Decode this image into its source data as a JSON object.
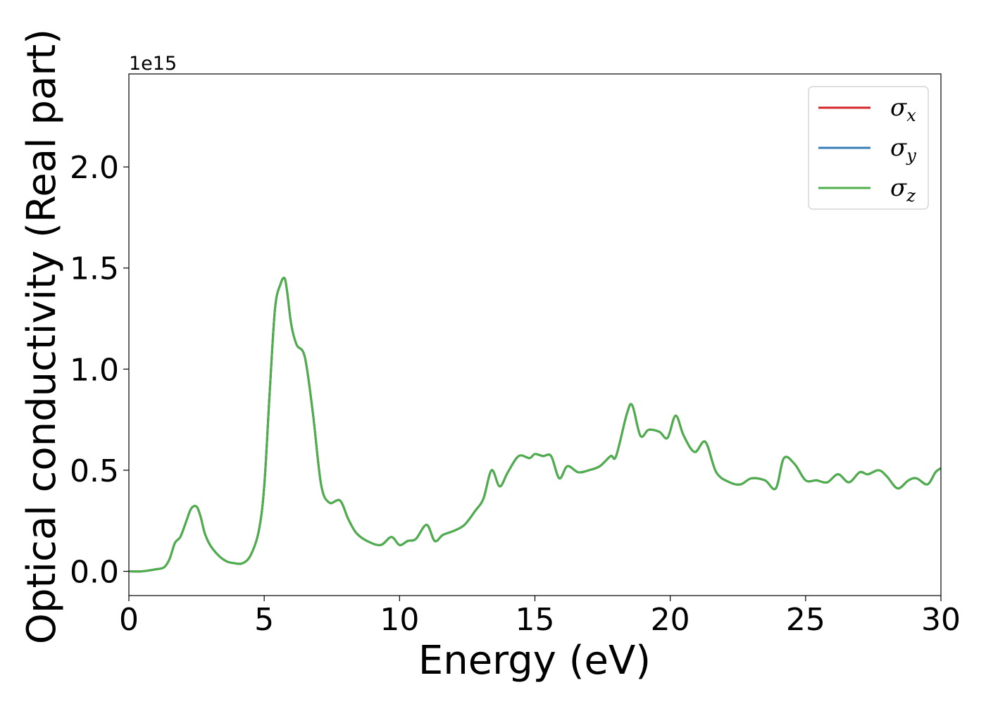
{
  "chart_data": {
    "type": "line",
    "title": "",
    "xlabel": "Energy (eV)",
    "ylabel": "Optical conductivity (Real part)",
    "y_offset_label": "1e15",
    "xlim": [
      0,
      30
    ],
    "ylim": [
      -0.12,
      2.46
    ],
    "x_ticks": [
      0,
      5,
      10,
      15,
      20,
      25,
      30
    ],
    "x_tick_labels": [
      "0",
      "5",
      "10",
      "15",
      "20",
      "25",
      "30"
    ],
    "y_ticks": [
      0.0,
      0.5,
      1.0,
      1.5,
      2.0
    ],
    "y_tick_labels": [
      "0.0",
      "0.5",
      "1.0",
      "1.5",
      "2.0"
    ],
    "grid": false,
    "legend_position": "top-right",
    "legend": [
      {
        "symbol": "σ",
        "sub": "x",
        "color": "#d62728"
      },
      {
        "symbol": "σ",
        "sub": "y",
        "color": "#377eb8"
      },
      {
        "symbol": "σ",
        "sub": "z",
        "color": "#4daf4a"
      }
    ],
    "x": [
      0,
      0.5,
      1.0,
      1.3,
      1.5,
      1.7,
      1.9,
      2.1,
      2.3,
      2.5,
      2.65,
      2.8,
      3.0,
      3.3,
      3.6,
      3.9,
      4.2,
      4.5,
      4.8,
      5.0,
      5.2,
      5.4,
      5.6,
      5.75,
      5.85,
      6.0,
      6.2,
      6.5,
      6.8,
      7.1,
      7.4,
      7.8,
      8.1,
      8.4,
      8.8,
      9.3,
      9.7,
      10.0,
      10.3,
      10.6,
      11.0,
      11.3,
      11.6,
      12.0,
      12.4,
      12.8,
      13.1,
      13.4,
      13.7,
      14.0,
      14.4,
      14.8,
      15.0,
      15.3,
      15.6,
      15.9,
      16.2,
      16.6,
      17.0,
      17.4,
      17.8,
      18.0,
      18.4,
      18.6,
      18.9,
      19.2,
      19.6,
      19.9,
      20.2,
      20.5,
      20.9,
      21.3,
      21.7,
      22.2,
      22.6,
      23.0,
      23.5,
      23.9,
      24.2,
      24.6,
      25.0,
      25.4,
      25.8,
      26.2,
      26.6,
      27.0,
      27.3,
      27.7,
      28.0,
      28.4,
      28.8,
      29.1,
      29.5,
      29.8,
      30.0
    ],
    "series": [
      {
        "name": "σx",
        "color": "#d62728",
        "values": [
          0,
          0.0,
          0.01,
          0.02,
          0.06,
          0.14,
          0.17,
          0.24,
          0.31,
          0.32,
          0.27,
          0.19,
          0.13,
          0.08,
          0.05,
          0.04,
          0.04,
          0.08,
          0.2,
          0.42,
          0.88,
          1.3,
          1.42,
          1.45,
          1.38,
          1.22,
          1.12,
          1.06,
          0.78,
          0.43,
          0.34,
          0.35,
          0.26,
          0.19,
          0.15,
          0.13,
          0.17,
          0.13,
          0.15,
          0.16,
          0.23,
          0.15,
          0.18,
          0.2,
          0.23,
          0.3,
          0.36,
          0.5,
          0.42,
          0.49,
          0.57,
          0.56,
          0.58,
          0.57,
          0.57,
          0.46,
          0.52,
          0.49,
          0.5,
          0.52,
          0.57,
          0.57,
          0.78,
          0.82,
          0.67,
          0.7,
          0.69,
          0.66,
          0.77,
          0.67,
          0.59,
          0.64,
          0.49,
          0.44,
          0.43,
          0.46,
          0.45,
          0.41,
          0.56,
          0.53,
          0.45,
          0.45,
          0.44,
          0.48,
          0.44,
          0.49,
          0.48,
          0.5,
          0.47,
          0.41,
          0.45,
          0.46,
          0.43,
          0.49,
          0.51
        ]
      },
      {
        "name": "σy",
        "color": "#377eb8",
        "values": [
          0,
          0.0,
          0.01,
          0.02,
          0.06,
          0.14,
          0.17,
          0.24,
          0.31,
          0.32,
          0.27,
          0.19,
          0.13,
          0.08,
          0.05,
          0.04,
          0.04,
          0.08,
          0.2,
          0.42,
          0.88,
          1.3,
          1.42,
          1.45,
          1.38,
          1.22,
          1.12,
          1.06,
          0.78,
          0.43,
          0.34,
          0.35,
          0.26,
          0.19,
          0.15,
          0.13,
          0.17,
          0.13,
          0.15,
          0.16,
          0.23,
          0.15,
          0.18,
          0.2,
          0.23,
          0.3,
          0.36,
          0.5,
          0.42,
          0.49,
          0.57,
          0.56,
          0.58,
          0.57,
          0.57,
          0.46,
          0.52,
          0.49,
          0.5,
          0.52,
          0.57,
          0.57,
          0.78,
          0.82,
          0.67,
          0.7,
          0.69,
          0.66,
          0.77,
          0.67,
          0.59,
          0.64,
          0.49,
          0.44,
          0.43,
          0.46,
          0.45,
          0.41,
          0.56,
          0.53,
          0.45,
          0.45,
          0.44,
          0.48,
          0.44,
          0.49,
          0.48,
          0.5,
          0.47,
          0.41,
          0.45,
          0.46,
          0.43,
          0.49,
          0.51
        ]
      },
      {
        "name": "σz",
        "color": "#4daf4a",
        "values": [
          0,
          0.0,
          0.01,
          0.02,
          0.06,
          0.14,
          0.17,
          0.24,
          0.31,
          0.32,
          0.27,
          0.19,
          0.13,
          0.08,
          0.05,
          0.04,
          0.04,
          0.08,
          0.2,
          0.42,
          0.88,
          1.3,
          1.42,
          1.45,
          1.38,
          1.22,
          1.12,
          1.06,
          0.78,
          0.43,
          0.34,
          0.35,
          0.26,
          0.19,
          0.15,
          0.13,
          0.17,
          0.13,
          0.15,
          0.16,
          0.23,
          0.15,
          0.18,
          0.2,
          0.23,
          0.3,
          0.36,
          0.5,
          0.42,
          0.49,
          0.57,
          0.56,
          0.58,
          0.57,
          0.57,
          0.46,
          0.52,
          0.49,
          0.5,
          0.52,
          0.57,
          0.57,
          0.78,
          0.82,
          0.67,
          0.7,
          0.69,
          0.66,
          0.77,
          0.67,
          0.59,
          0.64,
          0.49,
          0.44,
          0.43,
          0.46,
          0.45,
          0.41,
          0.56,
          0.53,
          0.45,
          0.45,
          0.44,
          0.48,
          0.44,
          0.49,
          0.48,
          0.5,
          0.47,
          0.41,
          0.45,
          0.46,
          0.43,
          0.49,
          0.51
        ]
      }
    ]
  }
}
